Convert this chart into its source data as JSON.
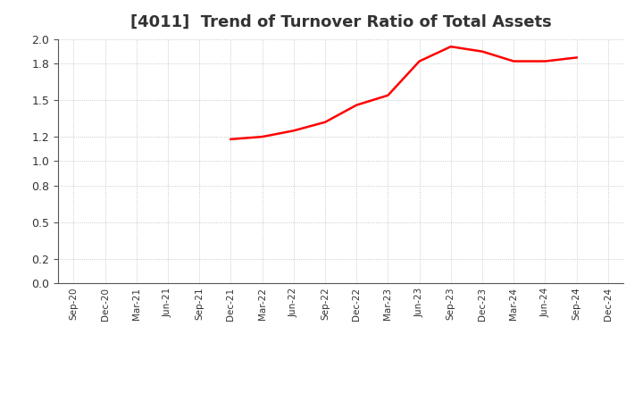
{
  "title": "[4011]  Trend of Turnover Ratio of Total Assets",
  "title_fontsize": 13,
  "line_color": "#FF0000",
  "line_width": 1.8,
  "background_color": "#FFFFFF",
  "grid_color": "#BBBBBB",
  "ylim": [
    0.0,
    2.0
  ],
  "yticks": [
    0.0,
    0.2,
    0.5,
    0.8,
    1.0,
    1.2,
    1.5,
    1.8,
    2.0
  ],
  "dates": [
    "Sep-20",
    "Dec-20",
    "Mar-21",
    "Jun-21",
    "Sep-21",
    "Dec-21",
    "Mar-22",
    "Jun-22",
    "Sep-22",
    "Dec-22",
    "Mar-23",
    "Jun-23",
    "Sep-23",
    "Dec-23",
    "Mar-24",
    "Jun-24",
    "Sep-24",
    "Dec-24"
  ],
  "values": [
    null,
    null,
    null,
    null,
    null,
    1.18,
    1.2,
    1.25,
    1.32,
    1.46,
    1.54,
    1.82,
    1.94,
    1.9,
    1.82,
    1.82,
    1.85,
    null
  ]
}
